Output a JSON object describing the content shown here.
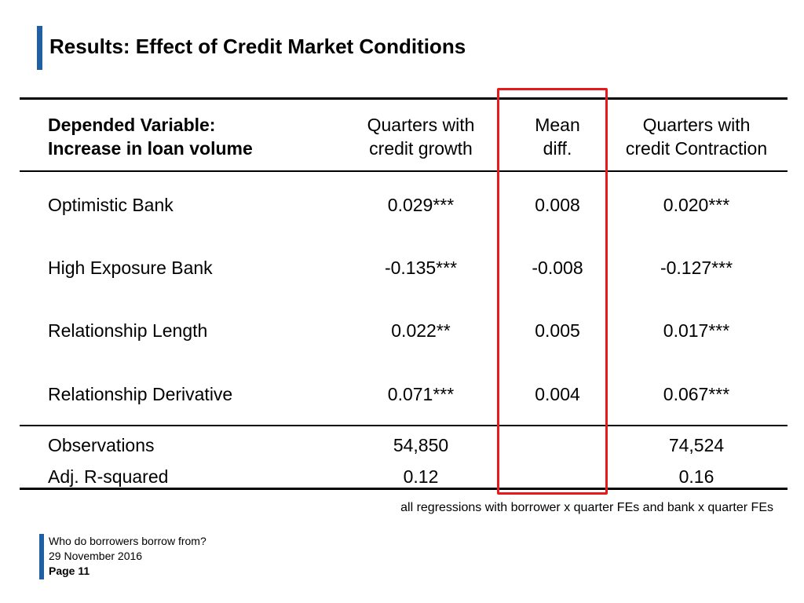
{
  "title": "Results: Effect of Credit Market Conditions",
  "table": {
    "header": {
      "label": [
        "Depended Variable:",
        "Increase in loan volume"
      ],
      "columns": [
        [
          "Quarters with",
          "credit growth"
        ],
        [
          "Mean",
          "diff."
        ],
        [
          "Quarters with",
          "credit Contraction"
        ]
      ]
    },
    "rows": [
      {
        "label": "Optimistic Bank",
        "values": [
          "0.029***",
          "0.008",
          "0.020***"
        ]
      },
      {
        "label": "High Exposure Bank",
        "values": [
          "-0.135***",
          "-0.008",
          "-0.127***"
        ]
      },
      {
        "label": "Relationship Length",
        "values": [
          "0.022**",
          "0.005",
          "0.017***"
        ]
      },
      {
        "label": "Relationship Derivative",
        "values": [
          "0.071***",
          "0.004",
          "0.067***"
        ]
      }
    ],
    "stats": [
      {
        "label": "Observations",
        "values": [
          "54,850",
          "",
          "74,524"
        ]
      },
      {
        "label": "Adj. R-squared",
        "values": [
          "0.12",
          "",
          "0.16"
        ]
      }
    ]
  },
  "note": "all regressions with borrower x quarter FEs and bank x quarter FEs",
  "footer": {
    "line1": "Who do borrowers borrow from?",
    "line2": "29 November 2016",
    "page": "Page 11"
  },
  "colors": {
    "accent": "#1f5fa3",
    "highlight": "#e8191c"
  }
}
